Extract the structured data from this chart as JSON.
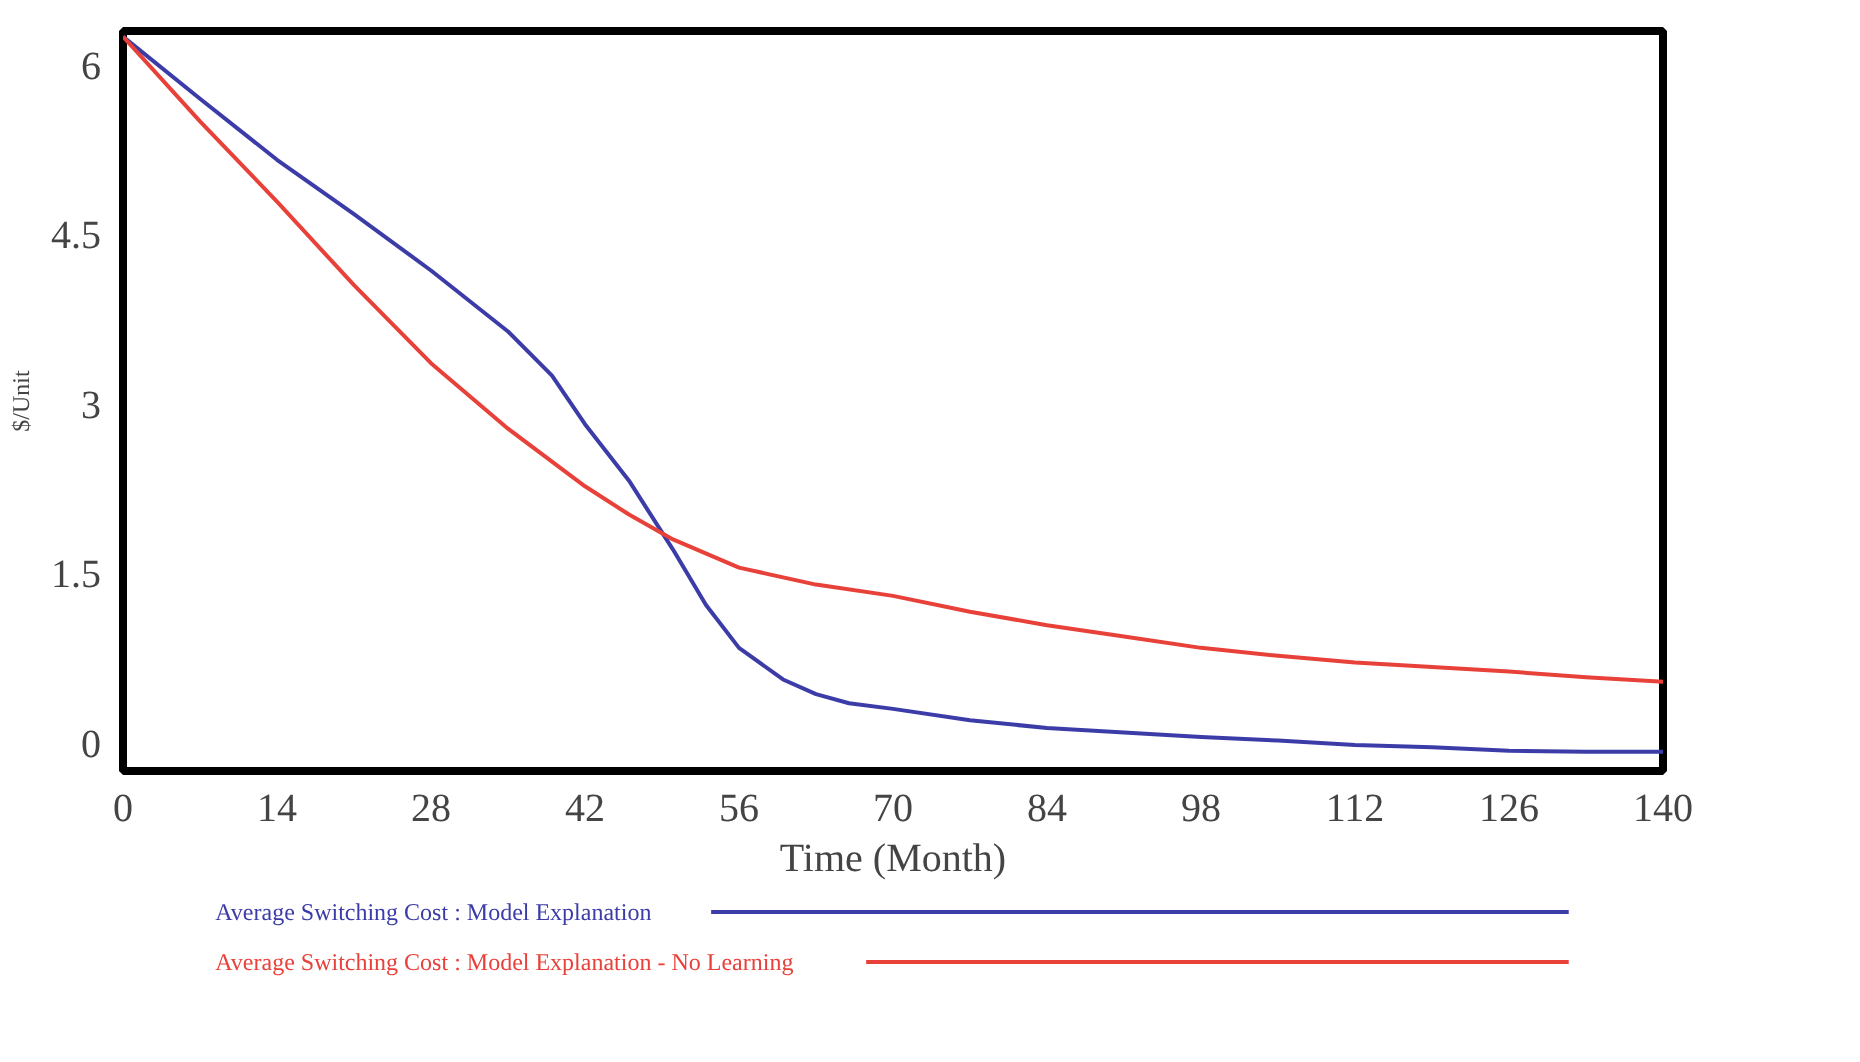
{
  "chart_data": {
    "type": "line",
    "xlabel": "Time (Month)",
    "ylabel": "$/Unit",
    "xlim": [
      0,
      140
    ],
    "ylim": [
      -0.25,
      6.3
    ],
    "xticks": [
      0,
      14,
      28,
      42,
      56,
      70,
      84,
      98,
      112,
      126,
      140
    ],
    "yticks": [
      0,
      1.5,
      3,
      4.5,
      6
    ],
    "grid": false,
    "legend": "bottom",
    "marker": "none",
    "line_style": "solid",
    "series": [
      {
        "name": "Average Switching Cost : Model Explanation",
        "color": "#3c3ca8",
        "x": [
          0,
          7,
          14,
          21,
          28,
          35,
          39,
          42,
          46,
          50,
          53,
          56,
          60,
          63,
          66,
          70,
          77,
          84,
          91,
          98,
          105,
          112,
          119,
          126,
          133,
          140
        ],
        "values": [
          6.25,
          5.7,
          5.16,
          4.68,
          4.18,
          3.64,
          3.25,
          2.82,
          2.32,
          1.71,
          1.22,
          0.84,
          0.56,
          0.43,
          0.35,
          0.3,
          0.2,
          0.13,
          0.09,
          0.05,
          0.02,
          -0.02,
          -0.04,
          -0.07,
          -0.08,
          -0.08
        ]
      },
      {
        "name": "Average Switching Cost : Model Explanation - No Learning",
        "color": "#e8413a",
        "x": [
          0,
          7,
          14,
          21,
          28,
          35,
          42,
          46,
          50,
          56,
          63,
          70,
          77,
          84,
          91,
          98,
          105,
          112,
          119,
          126,
          133,
          140
        ],
        "values": [
          6.25,
          5.5,
          4.79,
          4.05,
          3.36,
          2.78,
          2.27,
          2.02,
          1.8,
          1.55,
          1.4,
          1.3,
          1.16,
          1.04,
          0.94,
          0.84,
          0.77,
          0.71,
          0.67,
          0.63,
          0.58,
          0.54
        ]
      }
    ]
  }
}
